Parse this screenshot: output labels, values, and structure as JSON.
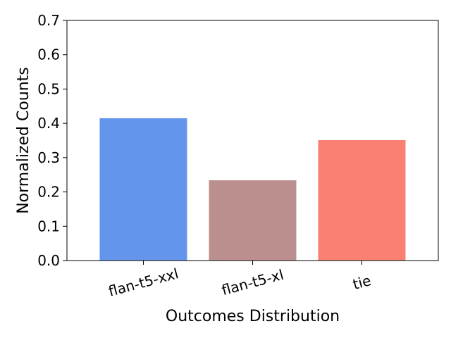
{
  "chart_data": {
    "type": "bar",
    "title": "",
    "categories": [
      "flan-t5-xxl",
      "flan-t5-xl",
      "tie"
    ],
    "values": [
      0.415,
      0.234,
      0.351
    ],
    "colors": [
      "#6495ED",
      "#BC8F8F",
      "#FA8072"
    ],
    "xlabel": "Outcomes Distribution",
    "ylabel": "Normalized Counts",
    "ylim": [
      0,
      0.7
    ],
    "yticks": [
      "0.0",
      "0.1",
      "0.2",
      "0.3",
      "0.4",
      "0.5",
      "0.6",
      "0.7"
    ],
    "grid": false,
    "legend": "none"
  }
}
